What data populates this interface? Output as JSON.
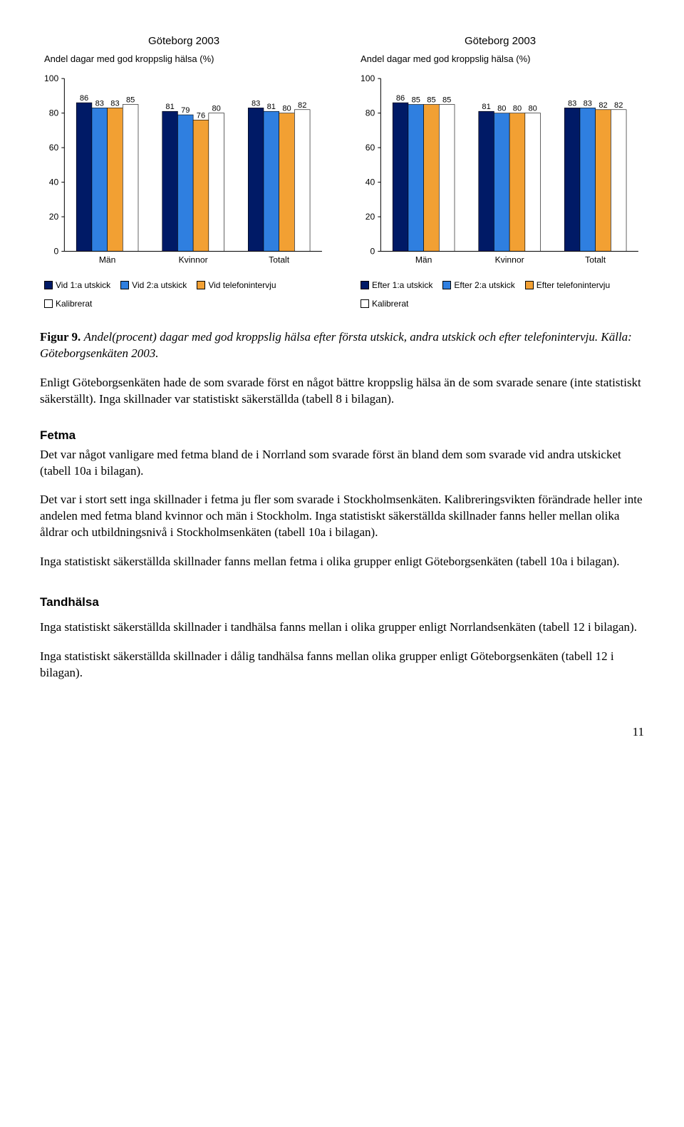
{
  "colors": {
    "series1": "#001a66",
    "series2": "#2f7fe0",
    "series3": "#f2a033",
    "series4": "#ffffff",
    "axis": "#000000",
    "text": "#000000"
  },
  "chart_left": {
    "title": "Göteborg 2003",
    "subtitle": "Andel dagar med god kroppslig hälsa (%)",
    "type": "bar",
    "ymax": 100,
    "ytick_step": 20,
    "yticks": [
      0,
      20,
      40,
      60,
      80,
      100
    ],
    "groups": [
      "Män",
      "Kvinnor",
      "Totalt"
    ],
    "series": [
      {
        "label": "Vid 1:a utskick",
        "color": "#001a66",
        "values": [
          86,
          81,
          83
        ]
      },
      {
        "label": "Vid 2:a utskick",
        "color": "#2f7fe0",
        "values": [
          83,
          79,
          81
        ]
      },
      {
        "label": "Vid telefonintervju",
        "color": "#f2a033",
        "values": [
          83,
          76,
          80
        ]
      },
      {
        "label": "Kalibrerat",
        "color": "#ffffff",
        "values": [
          85,
          80,
          82
        ]
      }
    ],
    "bar_width": 0.18,
    "font_family": "Arial",
    "title_fontsize": 15,
    "subtitle_fontsize": 13,
    "tick_fontsize": 12,
    "value_label_fontsize": 11
  },
  "chart_right": {
    "title": "Göteborg 2003",
    "subtitle": "Andel dagar med god kroppslig hälsa (%)",
    "type": "bar",
    "ymax": 100,
    "ytick_step": 20,
    "yticks": [
      0,
      20,
      40,
      60,
      80,
      100
    ],
    "groups": [
      "Män",
      "Kvinnor",
      "Totalt"
    ],
    "series": [
      {
        "label": "Efter 1:a utskick",
        "color": "#001a66",
        "values": [
          86,
          81,
          83
        ]
      },
      {
        "label": "Efter 2:a utskick",
        "color": "#2f7fe0",
        "values": [
          85,
          80,
          83
        ]
      },
      {
        "label": "Efter telefonintervju",
        "color": "#f2a033",
        "values": [
          85,
          80,
          82
        ]
      },
      {
        "label": "Kalibrerat",
        "color": "#ffffff",
        "values": [
          85,
          80,
          82
        ]
      }
    ],
    "bar_width": 0.18,
    "font_family": "Arial",
    "title_fontsize": 15,
    "subtitle_fontsize": 13,
    "tick_fontsize": 12,
    "value_label_fontsize": 11
  },
  "caption": {
    "label": "Figur 9.",
    "italic": "Andel(procent) dagar med god kroppslig hälsa efter första utskick, andra utskick och efter telefonintervju. Källa: Göteborgsenkäten 2003."
  },
  "para1": "Enligt Göteborgsenkäten hade de som svarade först en något bättre kroppslig hälsa än de som svarade senare (inte statistiskt säkerställt). Inga skillnader var statistiskt säkerställda (tabell 8 i bilagan).",
  "section_fetma": {
    "heading": "Fetma",
    "p1": "Det var något vanligare med fetma bland de i Norrland som svarade först än bland dem som svarade vid andra utskicket (tabell 10a i bilagan).",
    "p2": "Det var i stort sett inga skillnader i fetma ju fler som svarade i Stockholmsenkäten. Kalibreringsvikten förändrade heller inte andelen med fetma bland kvinnor och män i Stockholm. Inga statistiskt säkerställda skillnader fanns heller mellan olika åldrar och utbildningsnivå i Stockholmsenkäten (tabell 10a i bilagan).",
    "p3": "Inga statistiskt säkerställda skillnader fanns mellan fetma i olika grupper enligt Göteborgsenkäten (tabell 10a i bilagan)."
  },
  "section_tand": {
    "heading": "Tandhälsa",
    "p1": "Inga statistiskt säkerställda skillnader i tandhälsa fanns mellan i olika grupper enligt Norrlandsenkäten (tabell 12 i bilagan).",
    "p2": "Inga statistiskt säkerställda skillnader i dålig tandhälsa fanns mellan olika grupper enligt Göteborgsenkäten (tabell 12 i bilagan)."
  },
  "page_number": "11"
}
